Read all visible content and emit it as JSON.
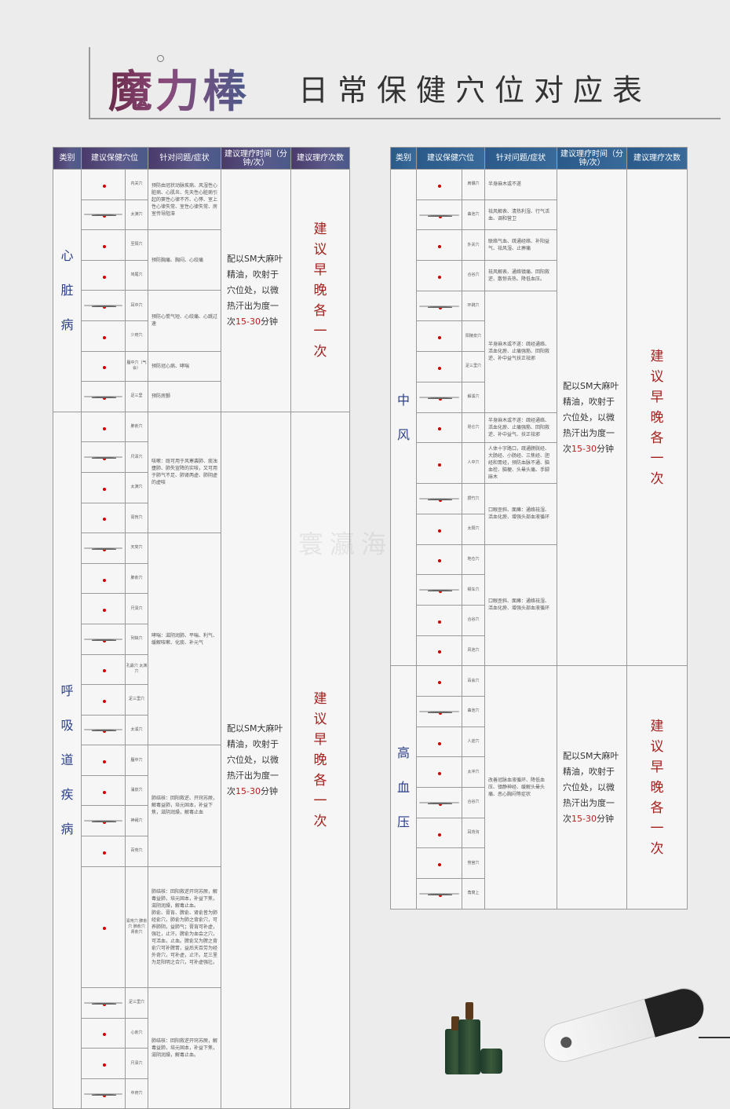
{
  "title": {
    "brand": "魔力棒",
    "subtitle": "日常保健穴位对应表"
  },
  "headers": [
    "类别",
    "建议保健穴位",
    "针对问题/症状",
    "建议理疗时间（分钟/次）",
    "建议理疗次数"
  ],
  "left": {
    "sections": [
      {
        "category": "心脏病",
        "rows": [
          {
            "acu": "内关穴"
          },
          {
            "acu": "太渊穴"
          },
          {
            "acu": "至阳穴"
          },
          {
            "acu": "鸠尾穴"
          },
          {
            "acu": "耳中穴"
          },
          {
            "acu": "少府穴"
          },
          {
            "acu": "膻中穴（气会）"
          },
          {
            "acu": "足三里"
          }
        ],
        "symptoms": [
          {
            "span": 2,
            "text": "预防由冠状动脉疾病、风湿性心脏病、心肌炎、先天性心脏病引起的窦性心律不齐、心悸、室上性心律失常、室性心律失常、房室传导阻滞"
          },
          {
            "span": 2,
            "text": "预防胸痛、胸闷、心绞痛"
          },
          {
            "span": 2,
            "text": "预防心慌气短、心绞痛、心跳过速"
          },
          {
            "span": 1,
            "text": "预防冠心病、哮喘"
          },
          {
            "span": 1,
            "text": "预防房颤"
          }
        ],
        "time": "配以SM大麻叶精油，吹射于穴位处，以微热汗出为度一次15-30分钟",
        "frequency": "建议早晚各一次"
      },
      {
        "category": "呼吸道疾病",
        "rows": [
          {
            "acu": "肺俞穴"
          },
          {
            "acu": "尺泽穴"
          },
          {
            "acu": "太渊穴"
          },
          {
            "acu": "膏肓穴"
          },
          {
            "acu": "天突穴"
          },
          {
            "acu": "肺俞穴"
          },
          {
            "acu": "尺泽穴"
          },
          {
            "acu": "列缺穴"
          },
          {
            "acu": "孔最穴 太渊穴"
          },
          {
            "acu": "足三里穴"
          },
          {
            "acu": "太溪穴"
          },
          {
            "acu": "膻中穴"
          },
          {
            "acu": "涌泉穴"
          },
          {
            "acu": "神阙穴"
          },
          {
            "acu": "百劳穴"
          },
          {
            "acu": "膏肓穴 脾俞穴 肺俞穴 肾俞穴",
            "big": true
          },
          {
            "acu": "足三里穴"
          },
          {
            "acu": "心俞穴"
          },
          {
            "acu": "尺泽穴"
          },
          {
            "acu": "中府穴"
          }
        ],
        "symptoms": [
          {
            "span": 4,
            "text": "咳嗽：既可用于风寒袭肺、痰浊壅肺、肺失宣降的实咳，又可用于肺气不足、肺肾两虚、肺阴虚的虚咳"
          },
          {
            "span": 7,
            "text": "哮喘：滋阴润肺、平喘、利气、缓解咳嗽、化痰、补元气"
          },
          {
            "span": 4,
            "text": "肺结核：回阳救逆、开窍苏厥，解毒益肺，培元固本，补益下焦，滋阴润燥，解毒止血"
          },
          {
            "span": 1,
            "text": "肺结核：回阳救逆开窍苏厥，解毒益肺，培元固本，补益下焦，滋阴润燥，解毒止血。\n肺俞、膏肓、脾俞、肾俞皆为肺经俞穴，肺俞为肺之背俞穴，可养肺阴，益肺气；膏肓可补虚，强壮，止汗。脾俞为血会之穴，可活血，止血。脾俞又为脾之背俞穴可补脾胃，益后天百劳为经外奇穴，可补虚，止汗。足三里为足阳明之合穴，可补虚强壮。"
          },
          {
            "span": 4,
            "text": "肺结核：回阳救逆开窍苏厥，解毒益肺，培元固本，补益下焦，滋阴润燥，解毒止血。"
          }
        ],
        "time": "配以SM大麻叶精油，吹射于穴位处，以微热汗出为度一次15-30分钟",
        "frequency": "建议早晚各一次"
      }
    ]
  },
  "right": {
    "sections": [
      {
        "category": "中风",
        "rows": [
          {
            "acu": "肩髃穴"
          },
          {
            "acu": "曲池穴"
          },
          {
            "acu": "外关穴"
          },
          {
            "acu": "合谷穴"
          },
          {
            "acu": "环跳穴"
          },
          {
            "acu": "阳陵泉穴"
          },
          {
            "acu": "足三里穴"
          },
          {
            "acu": "解溪穴"
          },
          {
            "acu": "昆仑穴"
          },
          {
            "acu": "人中穴"
          },
          {
            "acu": "攒竹穴"
          },
          {
            "acu": "太阳穴"
          },
          {
            "acu": "地仓穴"
          },
          {
            "acu": "颊车穴"
          },
          {
            "acu": "合谷穴"
          },
          {
            "acu": "风池穴"
          }
        ],
        "symptoms": [
          {
            "span": 1,
            "text": "半身麻木或不遂"
          },
          {
            "span": 1,
            "text": "祛风解表、清热利湿、行气活血、调和营卫"
          },
          {
            "span": 1,
            "text": "联络气血、疏通经络、补阳益气、祛风湿、止痹痛"
          },
          {
            "span": 1,
            "text": "祛风解表、通络镇痛、回阳救逆、散惊去热、降低血压。"
          },
          {
            "span": 4,
            "text": "半身麻木或不遂：疏经通络、活血化瘀、止痛强筋、回阳救逆、补中益气扶正祛邪"
          },
          {
            "span": 1,
            "text": "半身麻木或不遂：疏经通络、活血化瘀、止痛强筋、回阳救逆、补中益气、扶正祛邪"
          },
          {
            "span": 1,
            "text": "人体十字路口，疏通膀胱经、大肠经、小肠经、三焦经、胆经和胃经，预防血脉不通、脑血栓、脑梗、头晕头痛、手脚麻木"
          },
          {
            "span": 2,
            "text": "口眼歪斜、面瘫：通络祛湿、活血化瘀、增强头部血液循环"
          },
          {
            "span": 4,
            "text": "口眼歪斜、面瘫：通络祛湿、活血化瘀、增强头部血液循环"
          }
        ],
        "time": "配以SM大麻叶精油，吹射于穴位处，以微热汗出为度一次15-30分钟",
        "frequency": "建议早晚各一次"
      },
      {
        "category": "高血压",
        "rows": [
          {
            "acu": "百会穴"
          },
          {
            "acu": "曲池穴"
          },
          {
            "acu": "人迎穴"
          },
          {
            "acu": "太冲穴"
          },
          {
            "acu": "合谷穴"
          },
          {
            "acu": "耳背沟"
          },
          {
            "acu": "劳宫穴"
          },
          {
            "acu": "角窝上"
          }
        ],
        "symptoms": [
          {
            "span": 8,
            "text": "改善冠脉血液循环、降低血压、镇静神经、缓解头晕头痛、恶心胸闷等症状"
          }
        ],
        "time": "配以SM大麻叶精油，吹射于穴位处，以微热汗出为度一次15-30分钟",
        "frequency": "建议早晚各一次"
      }
    ]
  },
  "watermark": "寰瀛海"
}
